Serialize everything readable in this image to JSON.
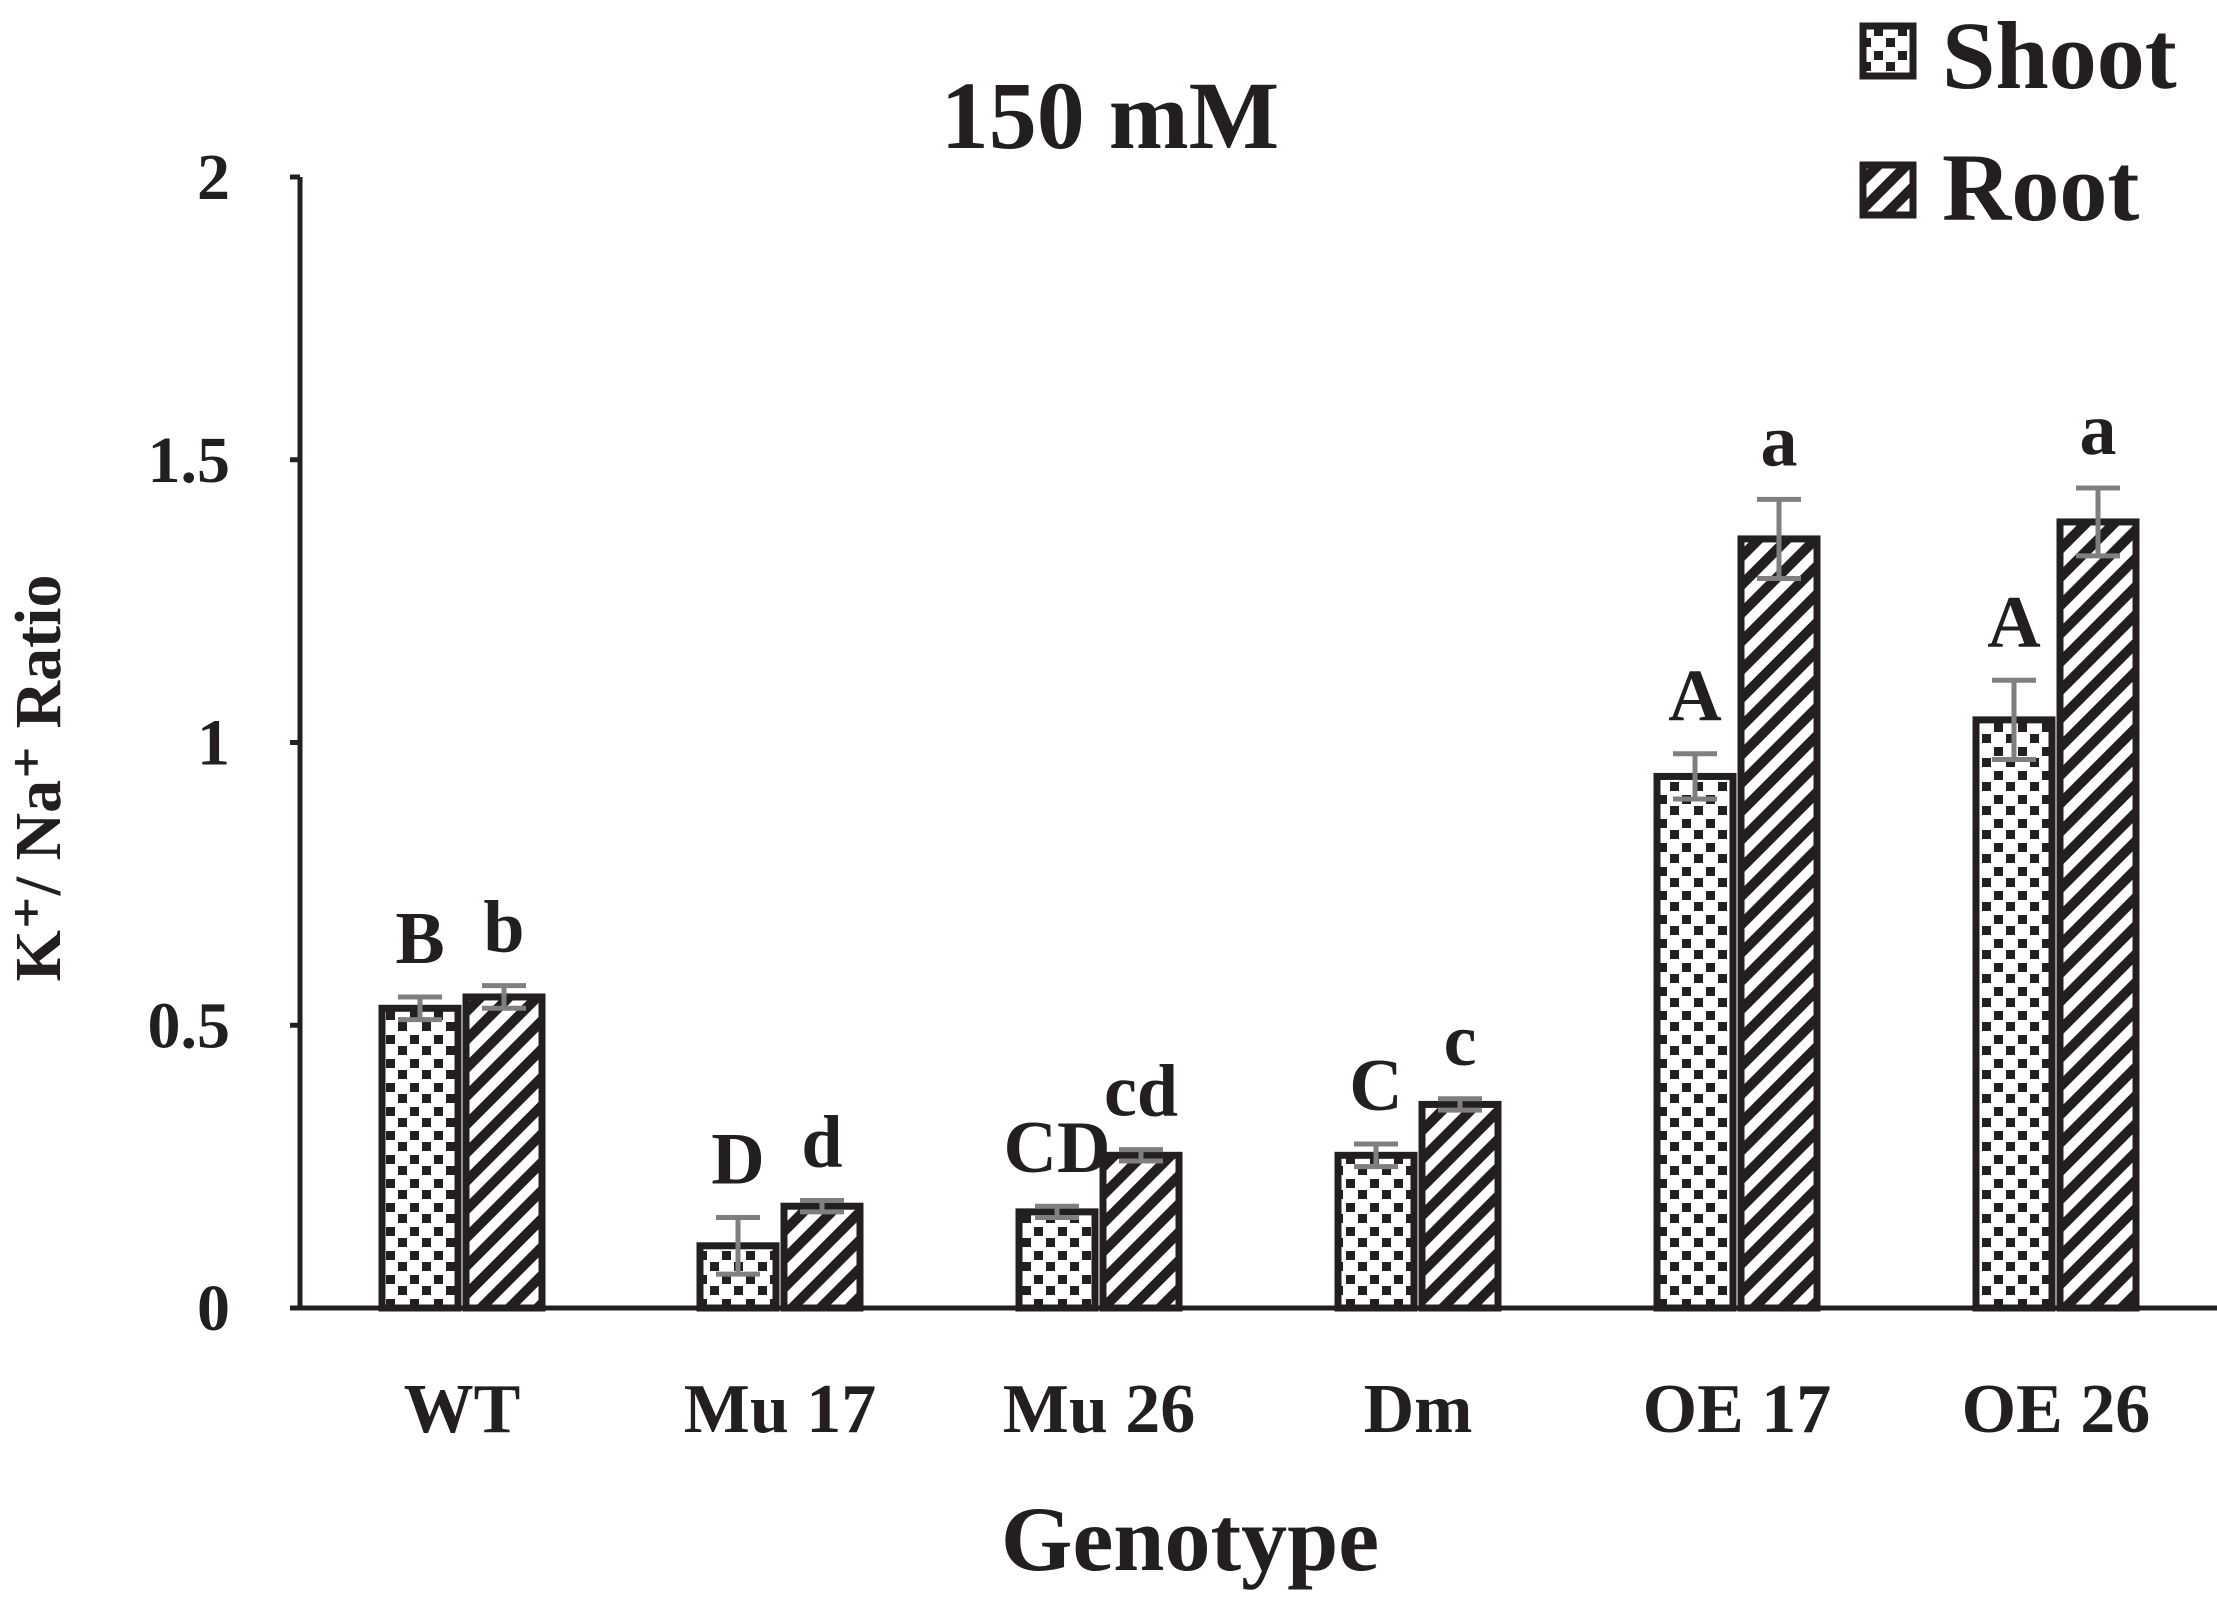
{
  "chart_data": {
    "type": "bar",
    "title": "150 mM",
    "xlabel": "Genotype",
    "ylabel": "K⁺/ Na⁺ Ratio",
    "ylim": [
      0,
      2
    ],
    "yticks": [
      "0",
      "0.5",
      "1",
      "1.5",
      "2"
    ],
    "categories": [
      "WT",
      "Mu 17",
      "Mu 26",
      "Dm",
      "OE 17",
      "OE 26"
    ],
    "series": [
      {
        "name": "Shoot",
        "values": [
          0.53,
          0.11,
          0.17,
          0.27,
          0.94,
          1.04
        ],
        "errors": [
          0.02,
          0.05,
          0.01,
          0.02,
          0.04,
          0.07
        ],
        "labels": [
          "B",
          "D",
          "CD",
          "C",
          "A",
          "A"
        ]
      },
      {
        "name": "Root",
        "values": [
          0.55,
          0.18,
          0.27,
          0.36,
          1.36,
          1.39
        ],
        "errors": [
          0.02,
          0.01,
          0.01,
          0.01,
          0.07,
          0.06
        ],
        "labels": [
          "b",
          "d",
          "cd",
          "c",
          "a",
          "a"
        ]
      }
    ],
    "legend_position": "top-right",
    "grid": false,
    "colors": {
      "bar_outline": "#231f20",
      "pattern": "#231f20",
      "error_bar": "#7f7f7f",
      "background": "#ffffff"
    }
  }
}
